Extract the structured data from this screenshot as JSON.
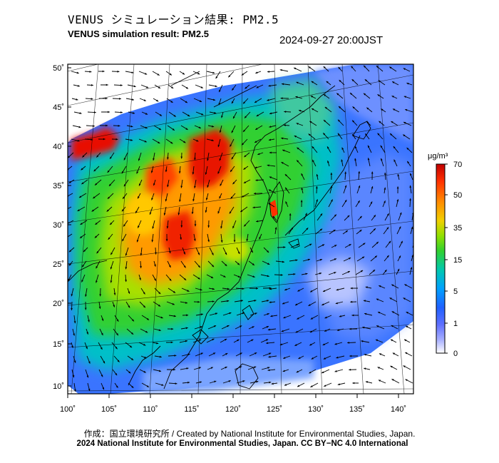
{
  "header": {
    "title_jp": "VENUS シミュレーション結果: PM2.5",
    "title_en": "VENUS simulation result: PM2.5",
    "datetime": "2024-09-27 20:00JST"
  },
  "map": {
    "longitude_ticks": [
      "100˚",
      "105˚",
      "110˚",
      "115˚",
      "120˚",
      "125˚",
      "130˚",
      "135˚",
      "140˚"
    ],
    "latitude_ticks": [
      "50˚",
      "45˚",
      "40˚",
      "35˚",
      "30˚",
      "25˚",
      "20˚",
      "15˚",
      "10˚"
    ],
    "lon_range": [
      100,
      142
    ],
    "lat_range": [
      9,
      51
    ]
  },
  "colorbar": {
    "unit": "μg/m³",
    "tick_labels": [
      "70",
      "50",
      "35",
      "15",
      "5",
      "1",
      "0"
    ],
    "colors": [
      "#c00000",
      "#ff3000",
      "#ff8c00",
      "#f0d000",
      "#90e000",
      "#30d030",
      "#00c8b0",
      "#00a0ff",
      "#2060ff",
      "#6070ff",
      "#a8b0ff",
      "#ffffff"
    ]
  },
  "footer": {
    "credit": "作成：国立環境研究所 / Created by National Institute for Environmental Studies, Japan.",
    "copyright": "2024 National Institute for Environmental Studies, Japan. CC BY−NC 4.0 International"
  }
}
